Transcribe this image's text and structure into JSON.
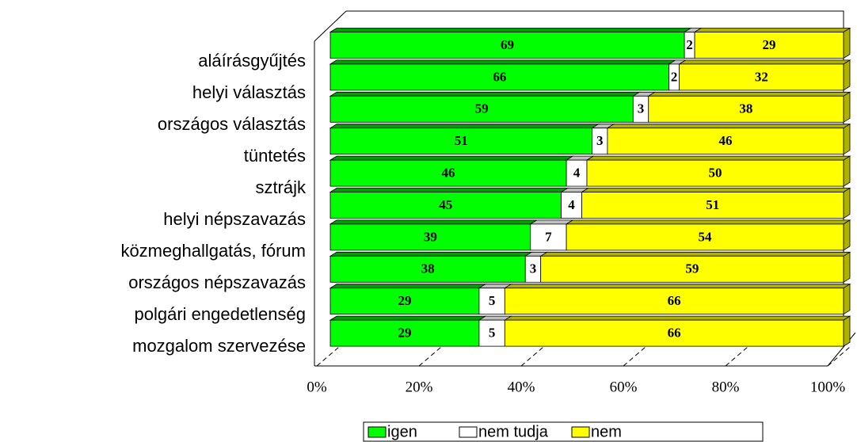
{
  "chart_data": {
    "type": "stacked_bar_horizontal_3d",
    "categories": [
      "aláírásgyűjtés",
      "helyi választás",
      "országos választás",
      "tüntetés",
      "sztrájk",
      "helyi népszavazás",
      "közmeghallgatás, fórum",
      "országos népszavazás",
      "polgári engedetlenség",
      "mozgalom szervezése"
    ],
    "series": [
      {
        "name": "igen",
        "color": "#00ff00",
        "values": [
          69,
          66,
          59,
          51,
          46,
          45,
          39,
          38,
          29,
          29
        ]
      },
      {
        "name": "nem tudja",
        "color": "#ffffff",
        "values": [
          2,
          2,
          3,
          3,
          4,
          4,
          7,
          3,
          5,
          5
        ]
      },
      {
        "name": "nem",
        "color": "#ffff00",
        "values": [
          29,
          32,
          38,
          46,
          50,
          51,
          54,
          59,
          66,
          66
        ]
      }
    ],
    "xlim": [
      0,
      100
    ],
    "xticks": [
      {
        "value": 0,
        "label": "0%"
      },
      {
        "value": 20,
        "label": "20%"
      },
      {
        "value": 40,
        "label": "40%"
      },
      {
        "value": 60,
        "label": "60%"
      },
      {
        "value": 80,
        "label": "80%"
      },
      {
        "value": 100,
        "label": "100%"
      }
    ],
    "legend": "bottom"
  }
}
